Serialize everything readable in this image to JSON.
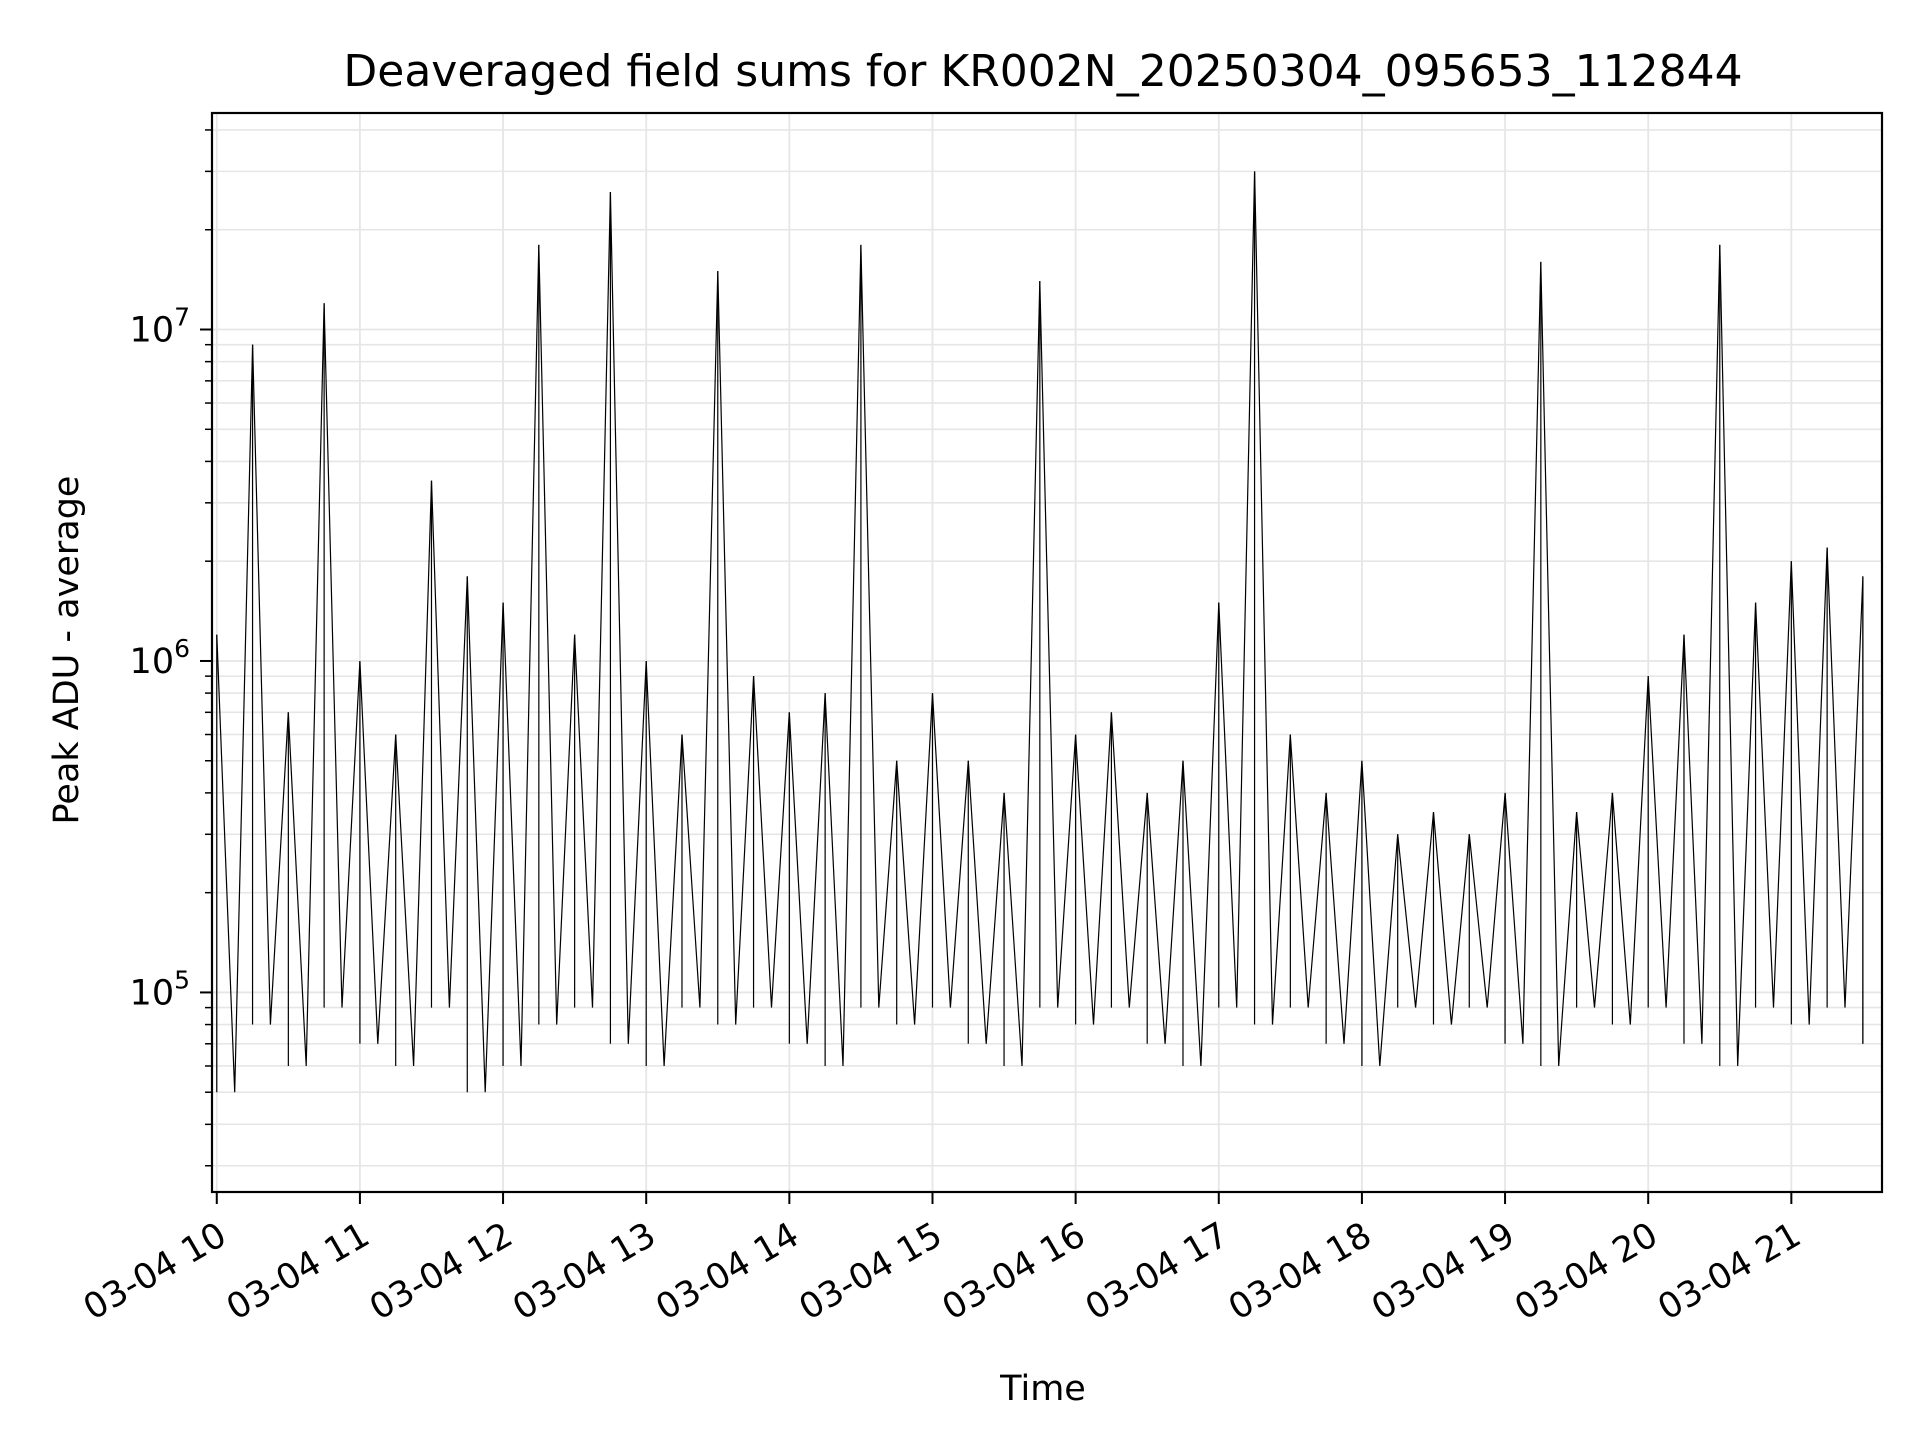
{
  "chart_data": {
    "type": "line",
    "title": "Deaveraged field sums for KR002N_20250304_095653_112844",
    "xlabel": "Time",
    "ylabel": "Peak ADU - average",
    "yscale": "log",
    "ylim": [
      25000,
      45000000
    ],
    "xlim": [
      "2025-03-04 09:58",
      "2025-03-04 21:38"
    ],
    "grid": true,
    "line_color": "#000000",
    "grid_color": "#e6e6e6",
    "x_ticks": [
      {
        "label": "03-04 10",
        "value": "2025-03-04 10:00"
      },
      {
        "label": "03-04 11",
        "value": "2025-03-04 11:00"
      },
      {
        "label": "03-04 12",
        "value": "2025-03-04 12:00"
      },
      {
        "label": "03-04 13",
        "value": "2025-03-04 13:00"
      },
      {
        "label": "03-04 14",
        "value": "2025-03-04 14:00"
      },
      {
        "label": "03-04 15",
        "value": "2025-03-04 15:00"
      },
      {
        "label": "03-04 16",
        "value": "2025-03-04 16:00"
      },
      {
        "label": "03-04 17",
        "value": "2025-03-04 17:00"
      },
      {
        "label": "03-04 18",
        "value": "2025-03-04 18:00"
      },
      {
        "label": "03-04 19",
        "value": "2025-03-04 19:00"
      },
      {
        "label": "03-04 20",
        "value": "2025-03-04 20:00"
      },
      {
        "label": "03-04 21",
        "value": "2025-03-04 21:00"
      }
    ],
    "y_ticks": [
      {
        "base": "10",
        "exp": "5",
        "value": 100000
      },
      {
        "base": "10",
        "exp": "6",
        "value": 1000000
      },
      {
        "base": "10",
        "exp": "7",
        "value": 10000000
      }
    ],
    "series": [
      {
        "x": [
          "2025-03-04 10:00",
          "2025-03-04 10:15",
          "2025-03-04 10:30",
          "2025-03-04 10:45",
          "2025-03-04 11:00",
          "2025-03-04 11:15",
          "2025-03-04 11:30",
          "2025-03-04 11:45",
          "2025-03-04 12:00",
          "2025-03-04 12:15",
          "2025-03-04 12:30",
          "2025-03-04 12:45",
          "2025-03-04 13:00",
          "2025-03-04 13:15",
          "2025-03-04 13:30",
          "2025-03-04 13:45",
          "2025-03-04 14:00",
          "2025-03-04 14:15",
          "2025-03-04 14:30",
          "2025-03-04 14:45",
          "2025-03-04 15:00",
          "2025-03-04 15:15",
          "2025-03-04 15:30",
          "2025-03-04 15:45",
          "2025-03-04 16:00",
          "2025-03-04 16:15",
          "2025-03-04 16:30",
          "2025-03-04 16:45",
          "2025-03-04 17:00",
          "2025-03-04 17:15",
          "2025-03-04 17:30",
          "2025-03-04 17:45",
          "2025-03-04 18:00",
          "2025-03-04 18:15",
          "2025-03-04 18:30",
          "2025-03-04 18:45",
          "2025-03-04 19:00",
          "2025-03-04 19:15",
          "2025-03-04 19:30",
          "2025-03-04 19:45",
          "2025-03-04 20:00",
          "2025-03-04 20:15",
          "2025-03-04 20:30",
          "2025-03-04 20:45",
          "2025-03-04 21:00",
          "2025-03-04 21:15",
          "2025-03-04 21:30"
        ],
        "y": [
          1200000,
          9000000,
          700000,
          12000000,
          1000000,
          600000,
          3500000,
          1800000,
          1500000,
          18000000,
          1200000,
          26000000,
          1000000,
          600000,
          15000000,
          900000,
          700000,
          800000,
          18000000,
          500000,
          800000,
          500000,
          400000,
          14000000,
          600000,
          700000,
          400000,
          500000,
          1500000,
          30000000,
          600000,
          400000,
          500000,
          300000,
          350000,
          300000,
          400000,
          16000000,
          350000,
          400000,
          900000,
          1200000,
          18000000,
          1500000,
          2000000,
          2200000,
          1800000
        ],
        "lows": [
          50000,
          80000,
          60000,
          90000,
          70000,
          60000,
          90000,
          50000,
          60000,
          80000,
          90000,
          70000,
          60000,
          90000,
          80000,
          90000,
          70000,
          60000,
          90000,
          80000,
          90000,
          70000,
          60000,
          90000,
          80000,
          90000,
          70000,
          60000,
          90000,
          80000,
          90000,
          70000,
          60000,
          90000,
          80000,
          90000,
          70000,
          60000,
          90000,
          80000,
          90000,
          70000,
          60000,
          90000,
          80000,
          90000,
          70000
        ]
      }
    ]
  }
}
